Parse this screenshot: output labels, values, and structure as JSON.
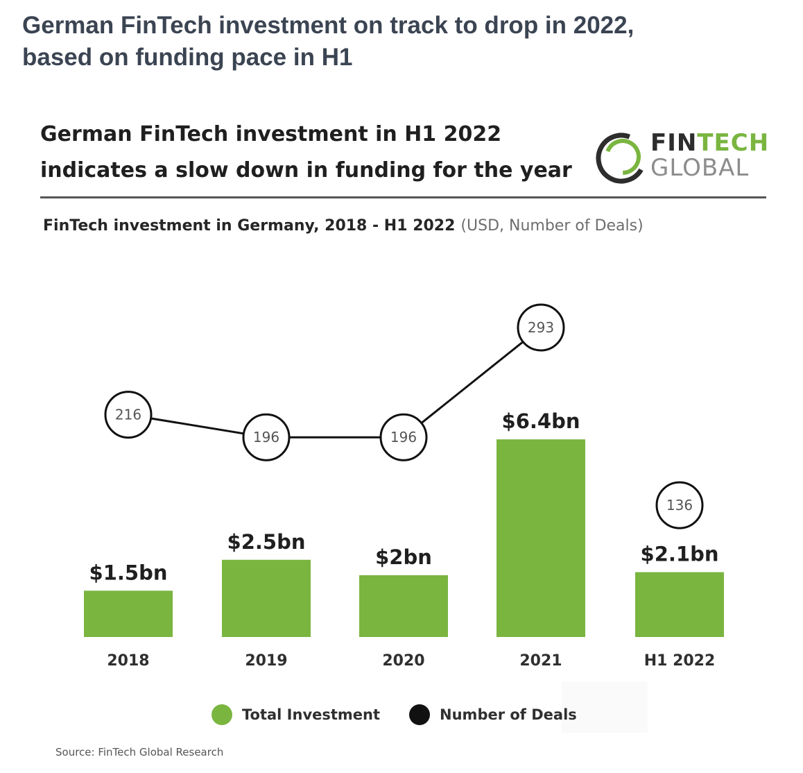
{
  "page_title": {
    "line1": "German FinTech investment on track to drop in 2022,",
    "line2": "based on funding pace in H1"
  },
  "card_title": {
    "line1": "German FinTech investment in H1 2022",
    "line2": "indicates a slow down in funding for the year"
  },
  "logo": {
    "word1_a": "FIN",
    "word1_b": "TECH",
    "word2": "GLOBAL"
  },
  "subtitle": {
    "main": "FinTech investment in Germany, 2018 - H1 2022",
    "units": "(USD, Number of Deals)"
  },
  "legend": {
    "investment": "Total Investment",
    "deals": "Number of Deals"
  },
  "source": "Source: FinTech Global Research",
  "colors": {
    "bar": "#7ab540",
    "line": "#111111",
    "title": "#3b4452"
  },
  "chart_data": {
    "type": "bar",
    "categories": [
      "2018",
      "2019",
      "2020",
      "2021",
      "H1 2022"
    ],
    "series": [
      {
        "name": "Total Investment",
        "values": [
          1.5,
          2.5,
          2.0,
          6.4,
          2.1
        ],
        "labels": [
          "$1.5bn",
          "$2.5bn",
          "$2bn",
          "$6.4bn",
          "$2.1bn"
        ],
        "color": "#7ab540"
      },
      {
        "name": "Number of Deals",
        "values": [
          216,
          196,
          196,
          293,
          136
        ],
        "color": "#111111",
        "connected": [
          true,
          true,
          true,
          true,
          false
        ]
      }
    ],
    "legend_position": "bottom",
    "grid": false
  }
}
